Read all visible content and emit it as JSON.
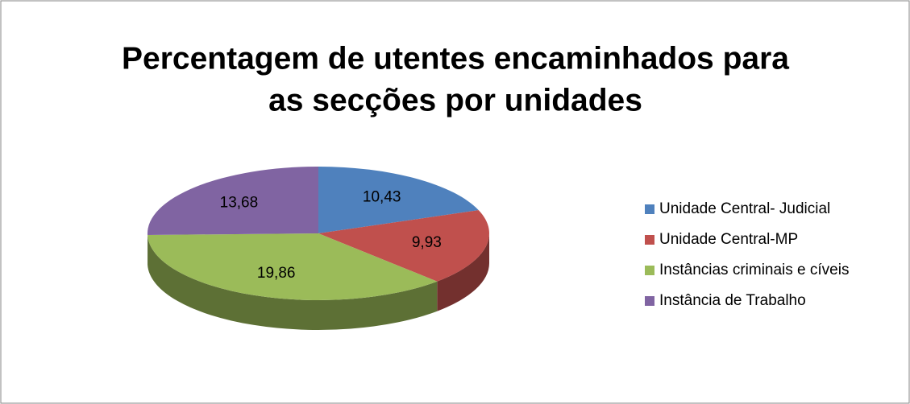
{
  "chart_data": {
    "type": "pie3d",
    "title": [
      "Percentagem de utentes encaminhados para",
      "as secções por unidades"
    ],
    "categories": [
      "Unidade Central- Judicial",
      "Unidade Central-MP",
      "Instâncias criminais e cíveis",
      "Instância de Trabalho"
    ],
    "values": [
      10.43,
      9.93,
      19.86,
      13.68
    ],
    "value_labels": [
      "10,43",
      "9,93",
      "19,86",
      "13,68"
    ],
    "colors": [
      "#4f81bd",
      "#c0504d",
      "#9bbb59",
      "#8064a2"
    ],
    "legend": "right"
  }
}
